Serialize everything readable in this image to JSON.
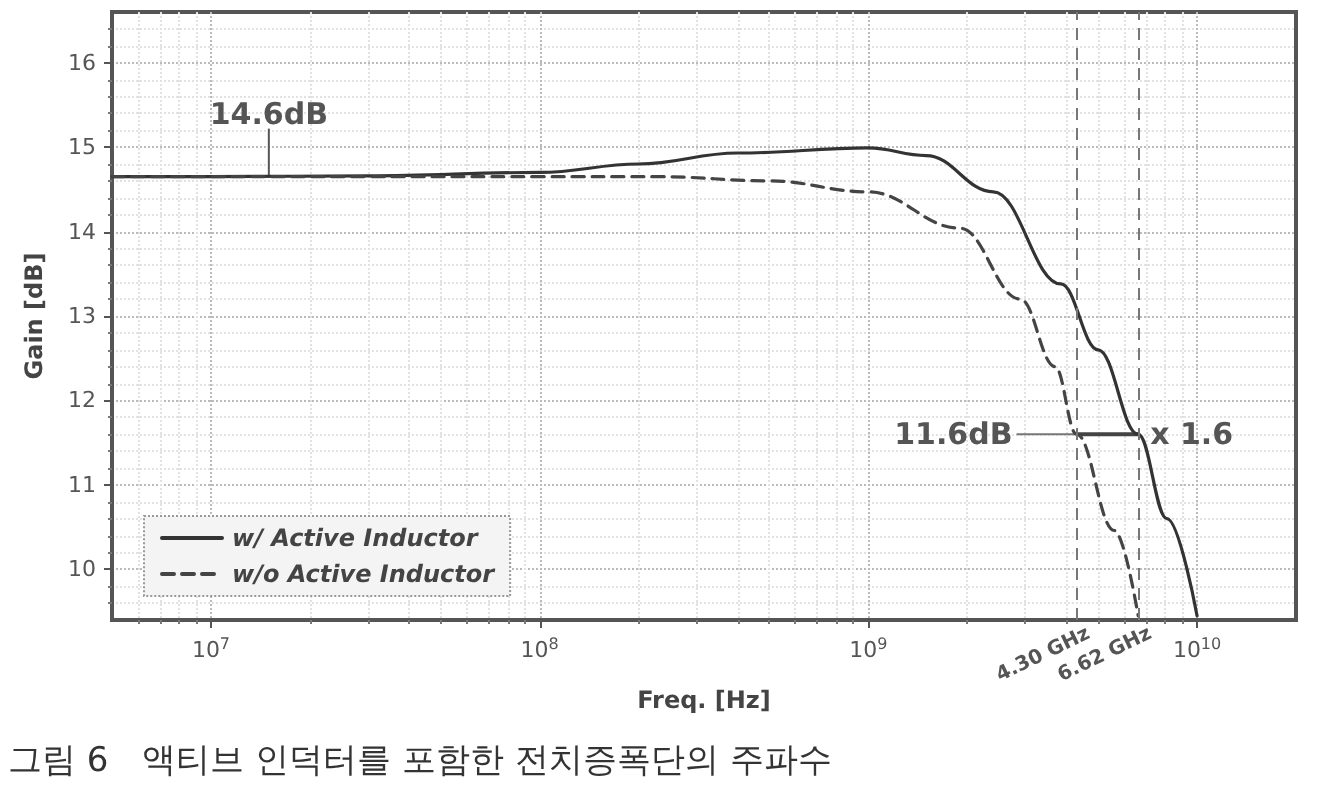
{
  "chart_data": {
    "type": "line",
    "xlabel": "Freq. [Hz]",
    "ylabel": "Gain [dB]",
    "log": "x",
    "xlim": [
      5000000,
      20000000000
    ],
    "ylim": [
      9.4,
      16.6
    ],
    "xticks": [
      {
        "value": 10000000,
        "label": "10$^{7}$"
      },
      {
        "value": 100000000,
        "label": "10$^{8}$"
      },
      {
        "value": 1000000000,
        "label": "10$^{9}$"
      },
      {
        "value": 10000000000,
        "label": "10$^{10}$"
      }
    ],
    "yticks": [
      10,
      11,
      12,
      13,
      14,
      15,
      16
    ],
    "grid": true,
    "legend": "bottom left",
    "series": [
      {
        "name": "w/ Active Inductor",
        "color": "#333333",
        "line_style": "solid",
        "x": [
          5000000,
          10000000,
          30000000,
          100000000,
          200000000,
          400000000,
          1000000000,
          1500000000,
          2400000000,
          3850000000,
          5000000000,
          6620000000,
          8100000000,
          10000000000
        ],
        "values": [
          14.65,
          14.65,
          14.66,
          14.7,
          14.8,
          14.93,
          14.99,
          14.9,
          14.47,
          13.38,
          12.6,
          11.6,
          10.6,
          9.45
        ]
      },
      {
        "name": "w/o Active Inductor",
        "color": "#444444",
        "line_style": "dashed",
        "x": [
          5000000,
          10000000,
          30000000,
          100000000,
          230000000,
          500000000,
          1000000000,
          1900000000,
          2900000000,
          3700000000,
          4300000000,
          5600000000,
          6620000000
        ],
        "values": [
          14.65,
          14.65,
          14.65,
          14.65,
          14.65,
          14.6,
          14.47,
          14.04,
          13.2,
          12.4,
          11.6,
          10.46,
          9.45
        ]
      }
    ],
    "ref_lines": [
      {
        "axis": "x",
        "value": 4300000000,
        "label": "4.30 GHz",
        "line_style": "dashed",
        "color": "#777777"
      },
      {
        "axis": "x",
        "value": 6620000000,
        "label": "6.62 GHz",
        "line_style": "dashed",
        "color": "#777777"
      }
    ],
    "annotations": [
      {
        "text": "14.6dB",
        "x": 15000000,
        "y": 14.65
      },
      {
        "text": "11.6dB",
        "x": 4300000000,
        "y": 11.6
      },
      {
        "text": "x 1.6",
        "x": 6620000000,
        "y": 11.6
      },
      "그림 6　액티브 인덕터를 포함한 전치증폭단의 주파수"
    ]
  }
}
